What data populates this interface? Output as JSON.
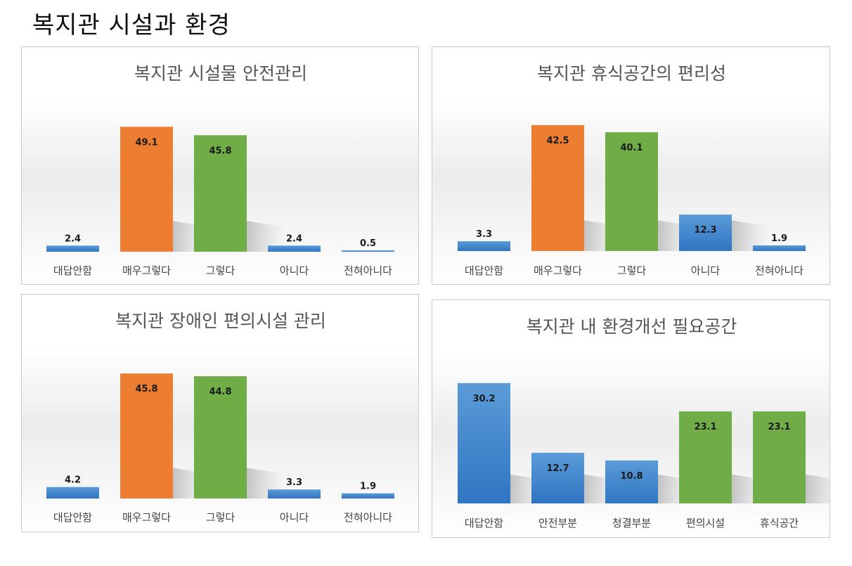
{
  "page": {
    "title": "복지관 시설과 환경"
  },
  "colors": {
    "blue": "#3c82cc",
    "orange": "#ed7d31",
    "green": "#70ad47"
  },
  "chart_data": [
    {
      "type": "bar",
      "title": "복지관 시설물 안전관리",
      "categories": [
        "대답안함",
        "매우그렇다",
        "그렇다",
        "아니다",
        "전혀아니다"
      ],
      "values": [
        2.4,
        49.1,
        45.8,
        2.4,
        0.5
      ],
      "bar_colors": [
        "blue",
        "orange",
        "green",
        "blue",
        "blue"
      ],
      "ylim": [
        0,
        55
      ],
      "grid": false,
      "legend": "none"
    },
    {
      "type": "bar",
      "title": "복지관 휴식공간의 편리성",
      "categories": [
        "대답안함",
        "매우그렇다",
        "그렇다",
        "아니다",
        "전혀아니다"
      ],
      "values": [
        3.3,
        42.5,
        40.1,
        12.3,
        1.9
      ],
      "bar_colors": [
        "blue",
        "orange",
        "green",
        "blue",
        "blue"
      ],
      "ylim": [
        0,
        47
      ],
      "grid": false,
      "legend": "none"
    },
    {
      "type": "bar",
      "title": "복지관 장애인 편의시설 관리",
      "categories": [
        "대답안함",
        "매우그렇다",
        "그렇다",
        "아니다",
        "전혀아니다"
      ],
      "values": [
        4.2,
        45.8,
        44.8,
        3.3,
        1.9
      ],
      "bar_colors": [
        "blue",
        "orange",
        "green",
        "blue",
        "blue"
      ],
      "ylim": [
        0,
        51
      ],
      "grid": false,
      "legend": "none"
    },
    {
      "type": "bar",
      "title": "복지관 내 환경개선 필요공간",
      "categories": [
        "대답안함",
        "안전부분",
        "청결부분",
        "편의시설",
        "휴식공간"
      ],
      "values": [
        30.2,
        12.7,
        10.8,
        23.1,
        23.1
      ],
      "bar_colors": [
        "blue",
        "blue",
        "blue",
        "green",
        "green"
      ],
      "ylim": [
        0,
        33
      ],
      "grid": false,
      "legend": "none"
    }
  ]
}
